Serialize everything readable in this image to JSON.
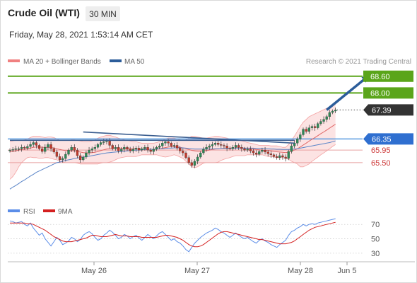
{
  "header": {
    "instrument": "Crude Oil (WTI)",
    "timeframe": "30 MIN",
    "datetime": "Friday, May 28, 2021 1:53:14 AM CET"
  },
  "legend": {
    "ma20": "MA 20 + Bollinger Bands",
    "ma50": "MA 50",
    "copyright": "Research © 2021 Trading Central",
    "rsi": "RSI",
    "ma9": "9MA"
  },
  "colors": {
    "candle_up": "#2e8b57",
    "candle_down": "#c0392b",
    "bollinger": "#f08080",
    "ma50": "#2c5d9a",
    "target": "#5aa51a",
    "current": "#333333",
    "pivot": "#2f6fd0",
    "support": "#cc3333",
    "rsi": "#5b8de8",
    "ma9": "#d42020"
  },
  "chart_data": [
    {
      "type": "candlestick",
      "title": "Crude Oil (WTI)",
      "timeframe": "30 MIN",
      "x_ticks": [
        "May 26",
        "May 27",
        "May 28",
        "Jun 5"
      ],
      "ylim": [
        64.1,
        69.0
      ],
      "levels": [
        {
          "value": 68.6,
          "label": "68.60",
          "role": "target",
          "style": "solid"
        },
        {
          "value": 68.0,
          "label": "68.00",
          "role": "target",
          "style": "solid"
        },
        {
          "value": 67.39,
          "label": "67.39",
          "role": "current",
          "style": "dotted"
        },
        {
          "value": 66.35,
          "label": "66.35",
          "role": "pivot",
          "style": "solid"
        },
        {
          "value": 65.95,
          "label": "65.95",
          "role": "support",
          "style": "solid"
        },
        {
          "value": 65.5,
          "label": "65.50",
          "role": "support",
          "style": "solid"
        }
      ],
      "close": [
        65.95,
        65.97,
        66.0,
        66.0,
        66.05,
        66.02,
        66.08,
        66.15,
        66.22,
        66.12,
        66.0,
        65.9,
        66.05,
        66.15,
        66.0,
        65.88,
        65.72,
        65.6,
        65.65,
        65.8,
        65.95,
        66.05,
        65.95,
        65.75,
        65.6,
        65.7,
        65.85,
        65.95,
        66.0,
        66.05,
        66.15,
        66.22,
        66.25,
        66.28,
        66.12,
        66.0,
        66.05,
        65.92,
        65.98,
        66.05,
        65.98,
        65.92,
        65.98,
        66.02,
        65.95,
        66.0,
        66.05,
        65.95,
        65.9,
        65.98,
        66.05,
        66.1,
        66.2,
        66.25,
        66.2,
        66.1,
        66.12,
        66.02,
        65.92,
        65.85,
        65.68,
        65.5,
        65.4,
        65.55,
        65.7,
        65.85,
        65.98,
        66.05,
        66.1,
        66.15,
        66.2,
        66.15,
        66.12,
        66.1,
        66.02,
        66.0,
        66.05,
        66.12,
        66.05,
        66.0,
        65.95,
        65.98,
        65.92,
        65.85,
        65.8,
        65.9,
        65.95,
        65.88,
        65.82,
        65.78,
        65.72,
        65.68,
        65.75,
        65.7,
        65.65,
        65.9,
        66.1,
        66.2,
        66.35,
        66.5,
        66.7,
        66.62,
        66.75,
        66.8,
        66.75,
        66.9,
        66.98,
        67.05,
        67.15,
        67.3,
        67.35,
        67.39
      ],
      "ma20_upper": [
        66.25,
        66.28,
        66.3,
        66.3,
        66.3,
        66.32,
        66.35,
        66.4,
        66.45,
        66.45,
        66.45,
        66.42,
        66.4,
        66.42,
        66.42,
        66.4,
        66.35,
        66.3,
        66.3,
        66.3,
        66.3,
        66.32,
        66.32,
        66.3,
        66.28,
        66.25,
        66.25,
        66.25,
        66.28,
        66.32,
        66.38,
        66.42,
        66.45,
        66.48,
        66.48,
        66.45,
        66.42,
        66.38,
        66.35,
        66.32,
        66.3,
        66.28,
        66.25,
        66.25,
        66.22,
        66.2,
        66.2,
        66.2,
        66.2,
        66.2,
        66.22,
        66.25,
        66.3,
        66.35,
        66.38,
        66.38,
        66.38,
        66.35,
        66.32,
        66.3,
        66.32,
        66.38,
        66.45,
        66.45,
        66.42,
        66.4,
        66.38,
        66.38,
        66.4,
        66.42,
        66.45,
        66.45,
        66.42,
        66.4,
        66.38,
        66.35,
        66.32,
        66.3,
        66.3,
        66.28,
        66.25,
        66.22,
        66.2,
        66.18,
        66.15,
        66.12,
        66.12,
        66.12,
        66.12,
        66.1,
        66.1,
        66.1,
        66.08,
        66.05,
        66.05,
        66.15,
        66.3,
        66.45,
        66.62,
        66.8,
        66.95,
        67.05,
        67.15,
        67.2,
        67.25,
        67.3,
        67.35,
        67.4,
        67.45,
        67.5,
        67.55,
        67.6
      ],
      "ma20": [
        65.9,
        65.9,
        65.92,
        65.95,
        65.97,
        65.98,
        66.0,
        66.02,
        66.05,
        66.06,
        66.06,
        66.05,
        66.05,
        66.05,
        66.05,
        66.02,
        66.0,
        65.97,
        65.95,
        65.93,
        65.92,
        65.92,
        65.92,
        65.9,
        65.88,
        65.86,
        65.85,
        65.85,
        65.86,
        65.87,
        65.9,
        65.93,
        65.96,
        65.99,
        66.0,
        66.01,
        66.02,
        66.02,
        66.02,
        66.01,
        66.0,
        66.0,
        66.0,
        66.0,
        65.99,
        65.99,
        65.99,
        65.99,
        65.98,
        65.98,
        65.99,
        66.0,
        66.02,
        66.04,
        66.06,
        66.07,
        66.07,
        66.06,
        66.05,
        66.03,
        66.0,
        65.97,
        65.94,
        65.92,
        65.91,
        65.91,
        65.92,
        65.93,
        65.95,
        65.97,
        65.99,
        66.0,
        66.01,
        66.02,
        66.02,
        66.02,
        66.02,
        66.03,
        66.03,
        66.03,
        66.02,
        66.01,
        66.0,
        65.99,
        65.97,
        65.96,
        65.95,
        65.94,
        65.93,
        65.92,
        65.9,
        65.89,
        65.88,
        65.87,
        65.86,
        65.88,
        65.91,
        65.95,
        66.0,
        66.06,
        66.13,
        66.2,
        66.27,
        66.34,
        66.4,
        66.47,
        66.54,
        66.6,
        66.67,
        66.74,
        66.81,
        66.88
      ],
      "ma20_lower": [
        64.9,
        65.0,
        65.15,
        65.35,
        65.5,
        65.6,
        65.68,
        65.7,
        65.68,
        65.68,
        65.65,
        65.65,
        65.68,
        65.68,
        65.65,
        65.62,
        65.6,
        65.55,
        65.52,
        65.5,
        65.5,
        65.5,
        65.5,
        65.48,
        65.45,
        65.45,
        65.45,
        65.45,
        65.45,
        65.45,
        65.45,
        65.48,
        65.5,
        65.5,
        65.52,
        65.55,
        65.6,
        65.65,
        65.68,
        65.7,
        65.72,
        65.72,
        65.72,
        65.72,
        65.75,
        65.78,
        65.78,
        65.78,
        65.78,
        65.78,
        65.78,
        65.75,
        65.72,
        65.7,
        65.72,
        65.75,
        65.78,
        65.75,
        65.7,
        65.65,
        65.55,
        65.45,
        65.35,
        65.32,
        65.35,
        65.42,
        65.48,
        65.5,
        65.5,
        65.5,
        65.5,
        65.52,
        65.58,
        65.62,
        65.65,
        65.68,
        65.72,
        65.75,
        65.75,
        65.75,
        65.75,
        65.78,
        65.78,
        65.78,
        65.78,
        65.78,
        65.78,
        65.75,
        65.72,
        65.72,
        65.7,
        65.68,
        65.68,
        65.68,
        65.65,
        65.62,
        65.55,
        65.5,
        65.45,
        65.35,
        65.35,
        65.4,
        65.45,
        65.55,
        65.62,
        65.7,
        65.78,
        65.85,
        65.92,
        66.0,
        66.08,
        66.15
      ],
      "ma50": [
        64.55,
        64.62,
        64.68,
        64.75,
        64.82,
        64.88,
        64.95,
        65.02,
        65.08,
        65.15,
        65.2,
        65.25,
        65.3,
        65.35,
        65.4,
        65.45,
        65.5,
        65.52,
        65.55,
        65.58,
        65.6,
        65.62,
        65.65,
        65.67,
        65.68,
        65.7,
        65.72,
        65.73,
        65.75,
        65.77,
        65.79,
        65.81,
        65.83,
        65.85,
        65.86,
        65.87,
        65.88,
        65.89,
        65.9,
        65.91,
        65.92,
        65.93,
        65.94,
        65.95,
        65.95,
        65.96,
        65.97,
        65.97,
        65.98,
        65.98,
        65.99,
        66.0,
        66.0,
        66.01,
        66.02,
        66.02,
        66.03,
        66.03,
        66.03,
        66.03,
        66.02,
        66.01,
        66.0,
        65.99,
        65.99,
        65.99,
        65.99,
        65.99,
        65.99,
        65.99,
        66.0,
        66.0,
        66.01,
        66.01,
        66.01,
        66.01,
        66.01,
        66.02,
        66.02,
        66.02,
        66.02,
        66.02,
        66.02,
        66.02,
        66.01,
        66.01,
        66.01,
        66.0,
        66.0,
        65.99,
        65.99,
        65.98,
        65.98,
        65.97,
        65.97,
        65.97,
        65.98,
        65.99,
        66.0,
        66.02,
        66.04,
        66.06,
        66.08,
        66.1,
        66.12,
        66.14,
        66.16,
        66.18,
        66.2,
        66.22,
        66.25,
        66.28
      ],
      "trendlines": [
        {
          "from": [
            25,
            66.6
          ],
          "to": [
            97,
            66.2
          ]
        },
        {
          "from": [
            0,
            66.3
          ],
          "to": [
            97,
            66.3
          ]
        }
      ],
      "projection": {
        "from": [
          108,
          67.39
        ],
        "to": [
          122,
          68.6
        ]
      }
    },
    {
      "type": "line",
      "title": "RSI",
      "x_ticks": [
        "May 26",
        "May 27",
        "May 28",
        "Jun 5"
      ],
      "ylim": [
        20,
        85
      ],
      "y_ticks": [
        30,
        50,
        70
      ],
      "series": [
        {
          "name": "RSI",
          "values": [
            75,
            74,
            72,
            73,
            74,
            70,
            68,
            72,
            65,
            60,
            55,
            58,
            50,
            45,
            40,
            46,
            52,
            48,
            42,
            44,
            47,
            52,
            50,
            46,
            49,
            55,
            58,
            60,
            57,
            52,
            48,
            50,
            55,
            58,
            62,
            59,
            55,
            50,
            52,
            56,
            54,
            50,
            53,
            55,
            51,
            48,
            52,
            56,
            53,
            50,
            54,
            58,
            60,
            56,
            52,
            48,
            50,
            46,
            44,
            40,
            35,
            32,
            38,
            44,
            48,
            52,
            55,
            58,
            60,
            62,
            65,
            63,
            60,
            58,
            55,
            52,
            55,
            58,
            55,
            52,
            50,
            52,
            49,
            46,
            44,
            48,
            50,
            47,
            45,
            42,
            40,
            38,
            42,
            45,
            48,
            55,
            60,
            62,
            65,
            67,
            70,
            68,
            70,
            71,
            70,
            72,
            73,
            74,
            75,
            76,
            77,
            78
          ]
        },
        {
          "name": "9MA",
          "values": [
            72,
            72,
            72,
            72,
            72,
            72,
            71,
            71,
            70,
            68,
            66,
            64,
            62,
            59,
            56,
            53,
            51,
            49,
            47,
            46,
            46,
            46,
            47,
            48,
            49,
            50,
            51,
            53,
            55,
            55,
            54,
            53,
            53,
            53,
            54,
            55,
            56,
            55,
            54,
            54,
            54,
            53,
            53,
            53,
            53,
            52,
            52,
            52,
            52,
            52,
            52,
            53,
            54,
            55,
            55,
            54,
            53,
            52,
            50,
            48,
            45,
            42,
            40,
            39,
            39,
            40,
            42,
            45,
            48,
            51,
            54,
            57,
            59,
            60,
            60,
            59,
            58,
            57,
            56,
            55,
            54,
            53,
            52,
            51,
            50,
            49,
            49,
            48,
            47,
            46,
            45,
            44,
            43,
            43,
            43,
            44,
            45,
            47,
            50,
            53,
            56,
            59,
            62,
            64,
            66,
            67,
            68,
            69,
            70,
            71,
            72,
            73
          ]
        }
      ]
    }
  ]
}
